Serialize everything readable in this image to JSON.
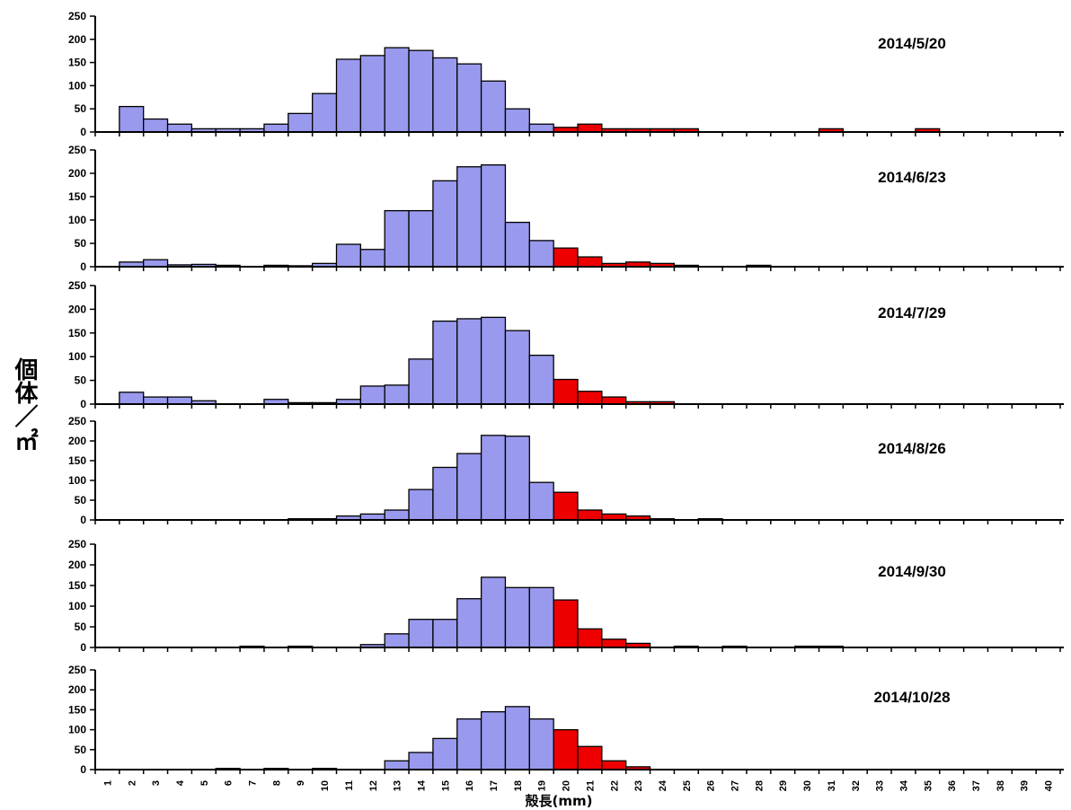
{
  "chart_data": {
    "type": "bar",
    "ylabel": "個体／㎡",
    "xlabel": "殻長(mm)",
    "categories": [
      "1",
      "2",
      "3",
      "4",
      "5",
      "6",
      "7",
      "8",
      "9",
      "10",
      "11",
      "12",
      "13",
      "14",
      "15",
      "16",
      "17",
      "18",
      "19",
      "20",
      "21",
      "22",
      "23",
      "24",
      "25",
      "26",
      "27",
      "28",
      "29",
      "30",
      "31",
      "32",
      "33",
      "34",
      "35",
      "36",
      "37",
      "38",
      "39",
      "40"
    ],
    "yticks": [
      0,
      50,
      100,
      150,
      200,
      250
    ],
    "ylim": [
      0,
      250
    ],
    "colors": {
      "below_20": "#9999ee",
      "from_20": "#ee0000",
      "edge": "#000000"
    },
    "threshold_category": "20",
    "panels": [
      {
        "date": "2014/5/20",
        "values": [
          0,
          55,
          28,
          17,
          7,
          7,
          7,
          17,
          40,
          83,
          157,
          165,
          182,
          176,
          160,
          147,
          110,
          50,
          17,
          10,
          17,
          7,
          7,
          7,
          7,
          0,
          0,
          0,
          0,
          0,
          7,
          0,
          0,
          0,
          7,
          0,
          0,
          0,
          0,
          0
        ]
      },
      {
        "date": "2014/6/23",
        "values": [
          0,
          10,
          15,
          4,
          5,
          3,
          0,
          3,
          2,
          7,
          48,
          37,
          120,
          120,
          184,
          214,
          218,
          95,
          56,
          40,
          21,
          7,
          10,
          7,
          3,
          0,
          0,
          3,
          0,
          0,
          0,
          0,
          0,
          0,
          0,
          0,
          0,
          0,
          0,
          0
        ]
      },
      {
        "date": "2014/7/29",
        "values": [
          0,
          25,
          15,
          15,
          7,
          0,
          0,
          10,
          3,
          3,
          10,
          38,
          40,
          95,
          175,
          180,
          183,
          155,
          103,
          52,
          27,
          15,
          5,
          5,
          0,
          0,
          0,
          0,
          0,
          0,
          0,
          0,
          0,
          0,
          0,
          0,
          0,
          0,
          0,
          0
        ]
      },
      {
        "date": "2014/8/26",
        "values": [
          0,
          0,
          0,
          0,
          0,
          0,
          0,
          0,
          3,
          3,
          10,
          15,
          25,
          77,
          133,
          168,
          214,
          212,
          95,
          70,
          25,
          15,
          10,
          3,
          0,
          3,
          0,
          0,
          0,
          0,
          0,
          0,
          0,
          0,
          0,
          0,
          0,
          0,
          0,
          0
        ]
      },
      {
        "date": "2014/9/30",
        "values": [
          0,
          0,
          0,
          0,
          0,
          0,
          3,
          0,
          3,
          0,
          0,
          7,
          33,
          68,
          68,
          118,
          170,
          145,
          145,
          115,
          45,
          20,
          10,
          0,
          3,
          0,
          3,
          0,
          0,
          3,
          3,
          0,
          0,
          0,
          0,
          0,
          0,
          0,
          0,
          0
        ]
      },
      {
        "date": "2014/10/28",
        "values": [
          0,
          0,
          0,
          0,
          0,
          3,
          0,
          3,
          0,
          3,
          0,
          0,
          22,
          43,
          78,
          127,
          145,
          158,
          127,
          100,
          58,
          22,
          7,
          0,
          0,
          0,
          0,
          0,
          0,
          0,
          0,
          0,
          0,
          0,
          0,
          0,
          0,
          0,
          0,
          0
        ]
      }
    ]
  }
}
